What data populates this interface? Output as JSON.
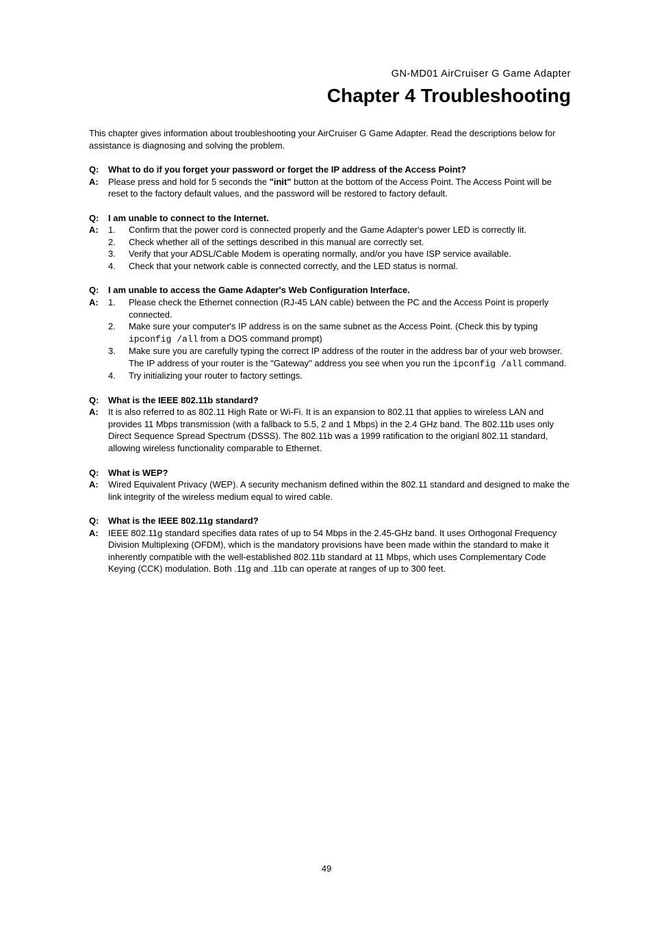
{
  "header": {
    "product": "GN-MD01 AirCruiser G Game Adapter",
    "chapter_title": "Chapter 4 Troubleshooting"
  },
  "intro": "This chapter gives information about troubleshooting your AirCruiser G Game Adapter. Read the descriptions below for assistance is diagnosing and solving the problem.",
  "labels": {
    "q": "Q:",
    "a": "A:"
  },
  "qa1": {
    "q": "What to do if you forget your password or forget the IP address of the Access Point?",
    "a_pre": "Please press and hold for 5 seconds the ",
    "a_bold": "\"init\"",
    "a_post": " button at the bottom of the Access Point. The Access Point will be reset to the factory default values, and the password will be restored to factory default."
  },
  "qa2": {
    "q": "I am unable to connect to the Internet.",
    "n1": "1.",
    "t1": "Confirm that the power cord is connected properly and the Game Adapter's power LED is correctly lit.",
    "n2": "2.",
    "t2": "Check whether all of the settings described in this manual are correctly set.",
    "n3": "3.",
    "t3": "Verify that your ADSL/Cable Modem is operating normally, and/or you have ISP service available.",
    "n4": "4.",
    "t4": "Check that your network cable is connected correctly, and the LED status is normal."
  },
  "qa3": {
    "q": "I am unable to access the Game Adapter's Web Configuration Interface.",
    "n1": "1.",
    "t1": "Please check the Ethernet connection (RJ-45 LAN cable) between the PC and the Access Point is properly connected.",
    "n2": "2.",
    "t2_pre": "Make sure your computer's IP address is on the same subnet as the Access Point. (Check this by typing ",
    "t2_mono": "ipconfig /all",
    "t2_post": "  from a DOS command prompt)",
    "n3": "3.",
    "t3_pre": "Make sure you are carefully typing the correct IP address of the router in the address bar of your web browser. The IP address of your router is the \"Gateway\" address you see when you run the ",
    "t3_mono": "ipconfig /all",
    "t3_post": " command.",
    "n4": "4.",
    "t4": "Try initializing your router to factory settings."
  },
  "qa4": {
    "q": "What is the IEEE 802.11b standard?",
    "a": "It is also referred to as 802.11 High Rate or Wi-Fi. It is an expansion to 802.11 that applies to wireless LAN and provides 11 Mbps transmission (with a fallback to 5.5, 2 and 1 Mbps) in the 2.4 GHz band. The 802.11b uses only Direct Sequence Spread Spectrum (DSSS). The 802.11b was a 1999 ratification to the origianl 802.11 standard, allowing wireless functionality comparable to Ethernet."
  },
  "qa5": {
    "q": "What is WEP?",
    "a": "Wired Equivalent Privacy (WEP). A security mechanism defined within the 802.11 standard and designed to make the link integrity of the wireless medium equal to wired cable."
  },
  "qa6": {
    "q": "What is the IEEE 802.11g standard?",
    "a": "IEEE 802.11g standard specifies data rates of up to 54 Mbps in the 2.45-GHz band. It uses Orthogonal Frequency Division Multiplexing (OFDM), which is the mandatory provisions have been made within the standard to make it inherently compatible with the well-established 802.11b standard at 11 Mbps, which uses Complementary Code Keying (CCK) modulation. Both .11g and .11b can operate at ranges of up to 300 feet."
  },
  "page_number": "49"
}
